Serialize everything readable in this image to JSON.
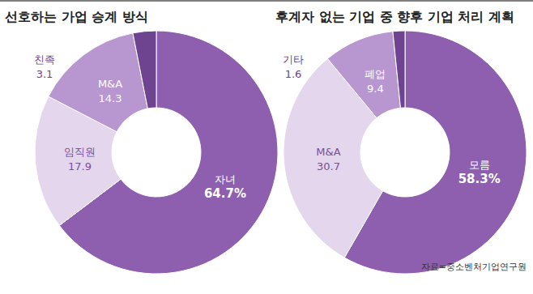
{
  "chart_data": [
    {
      "type": "pie",
      "title": "선호하는 가업 승계 방식",
      "categories": [
        "자녀",
        "임직원",
        "M&A",
        "친족"
      ],
      "values": [
        64.7,
        17.9,
        14.3,
        3.1
      ],
      "value_labels": [
        "64.7%",
        "17.9",
        "14.3",
        "3.1"
      ],
      "colors": [
        "#8d5fae",
        "#e4d6ec",
        "#b896cf",
        "#6e4390"
      ],
      "data_labels": true
    },
    {
      "type": "pie",
      "title": "후계자 없는 기업 중 향후 기업 처리 계획",
      "categories": [
        "모름",
        "M&A",
        "폐업",
        "기타"
      ],
      "values": [
        58.3,
        30.7,
        9.4,
        1.6
      ],
      "value_labels": [
        "58.3%",
        "30.7",
        "9.4",
        "1.6"
      ],
      "colors": [
        "#8d5fae",
        "#e4d6ec",
        "#b896cf",
        "#6e4390"
      ],
      "data_labels": true
    }
  ],
  "source": "자료=중소벤처기업연구원"
}
